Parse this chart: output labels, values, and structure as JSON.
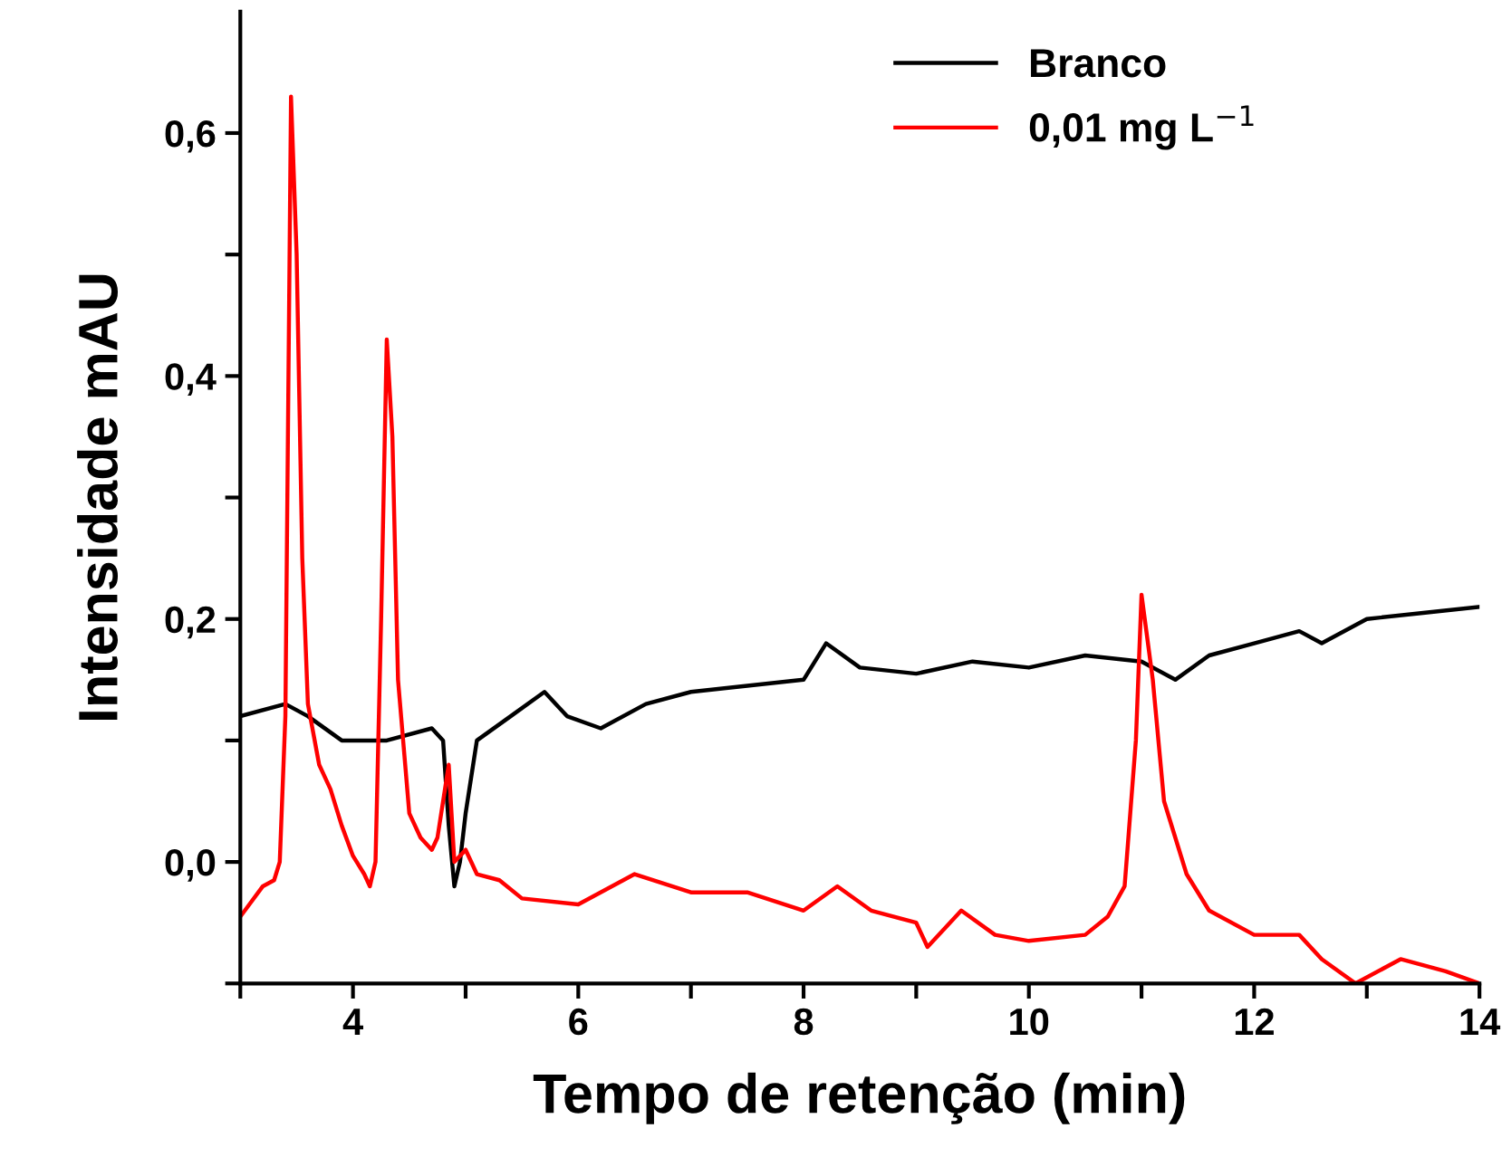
{
  "chart_data": {
    "type": "line",
    "xlabel": "Tempo de retenção (min)",
    "ylabel": "Intensidade mAU",
    "xlim": [
      3,
      14
    ],
    "ylim": [
      -0.1,
      0.7
    ],
    "xticks": [
      {
        "value": 3,
        "label": null
      },
      4,
      {
        "value": 5,
        "label": null
      },
      6,
      {
        "value": 7,
        "label": null
      },
      8,
      {
        "value": 9,
        "label": null
      },
      10,
      {
        "value": 11,
        "label": null
      },
      12,
      {
        "value": 13,
        "label": null
      },
      14
    ],
    "yticks": [
      {
        "value": -0.1,
        "label": null
      },
      {
        "value": 0.0,
        "label": "0,0"
      },
      {
        "value": 0.1,
        "label": null
      },
      {
        "value": 0.2,
        "label": "0,2"
      },
      {
        "value": 0.3,
        "label": null
      },
      {
        "value": 0.4,
        "label": "0,4"
      },
      {
        "value": 0.5,
        "label": null
      },
      {
        "value": 0.6,
        "label": "0,6"
      }
    ],
    "grid": false,
    "legend": "top right",
    "line_style": "solid",
    "marker": "none",
    "series": [
      {
        "name": "Branco",
        "color": "#000000",
        "x": [
          3.0,
          3.4,
          3.6,
          3.9,
          4.3,
          4.7,
          4.8,
          4.85,
          4.9,
          4.95,
          5.0,
          5.1,
          5.4,
          5.7,
          5.9,
          6.2,
          6.6,
          7.0,
          7.5,
          8.0,
          8.2,
          8.5,
          9.0,
          9.5,
          10.0,
          10.5,
          11.0,
          11.3,
          11.6,
          12.0,
          12.4,
          12.6,
          13.0,
          13.5,
          14.0
        ],
        "values": [
          0.12,
          0.13,
          0.12,
          0.1,
          0.1,
          0.11,
          0.1,
          0.03,
          -0.02,
          0.0,
          0.04,
          0.1,
          0.12,
          0.14,
          0.12,
          0.11,
          0.13,
          0.14,
          0.145,
          0.15,
          0.18,
          0.16,
          0.155,
          0.165,
          0.16,
          0.17,
          0.165,
          0.15,
          0.17,
          0.18,
          0.19,
          0.18,
          0.2,
          0.205,
          0.21
        ]
      },
      {
        "name": "0,01 mg L$^{−1}$",
        "color": "#ff0000",
        "x": [
          3.0,
          3.2,
          3.3,
          3.35,
          3.4,
          3.45,
          3.5,
          3.55,
          3.6,
          3.7,
          3.8,
          3.9,
          4.0,
          4.1,
          4.15,
          4.2,
          4.25,
          4.3,
          4.35,
          4.4,
          4.5,
          4.6,
          4.7,
          4.75,
          4.85,
          4.9,
          5.0,
          5.1,
          5.3,
          5.5,
          6.0,
          6.5,
          7.0,
          7.5,
          8.0,
          8.3,
          8.6,
          9.0,
          9.1,
          9.4,
          9.7,
          10.0,
          10.5,
          10.7,
          10.85,
          10.95,
          11.0,
          11.1,
          11.2,
          11.4,
          11.6,
          12.0,
          12.4,
          12.6,
          12.9,
          13.3,
          13.7,
          14.0
        ],
        "values": [
          -0.045,
          -0.02,
          -0.015,
          0.0,
          0.12,
          0.63,
          0.5,
          0.25,
          0.13,
          0.08,
          0.06,
          0.03,
          0.005,
          -0.01,
          -0.02,
          0.0,
          0.2,
          0.43,
          0.35,
          0.15,
          0.04,
          0.02,
          0.01,
          0.02,
          0.08,
          0.0,
          0.01,
          -0.01,
          -0.015,
          -0.03,
          -0.035,
          -0.01,
          -0.025,
          -0.025,
          -0.04,
          -0.02,
          -0.04,
          -0.05,
          -0.07,
          -0.04,
          -0.06,
          -0.065,
          -0.06,
          -0.045,
          -0.02,
          0.1,
          0.22,
          0.15,
          0.05,
          -0.01,
          -0.04,
          -0.06,
          -0.06,
          -0.08,
          -0.1,
          -0.08,
          -0.09,
          -0.1
        ]
      }
    ]
  }
}
